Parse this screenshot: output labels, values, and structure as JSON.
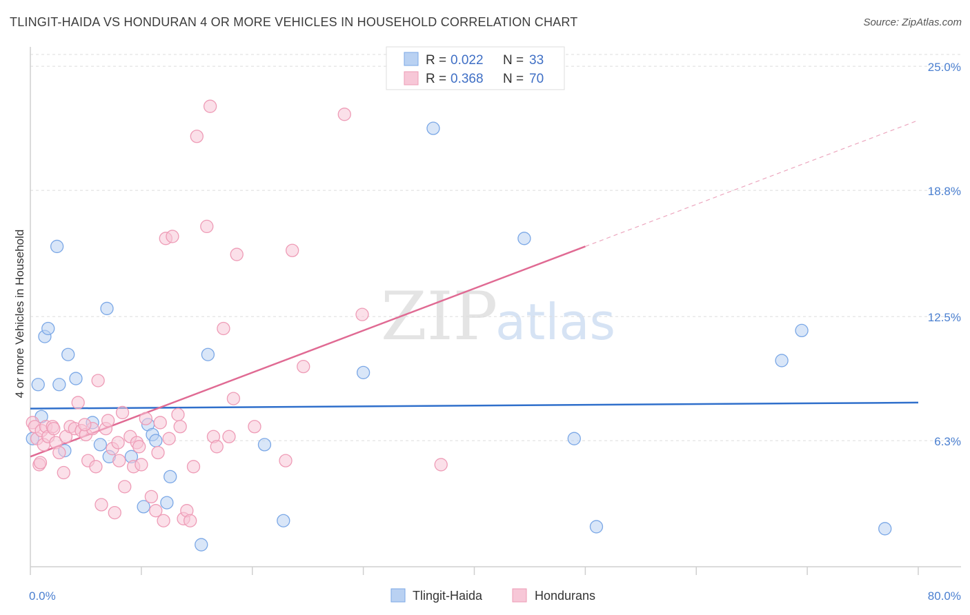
{
  "title": "TLINGIT-HAIDA VS HONDURAN 4 OR MORE VEHICLES IN HOUSEHOLD CORRELATION CHART",
  "source": "Source: ZipAtlas.com",
  "watermark": {
    "zip": "ZIP",
    "atlas": "atlas"
  },
  "legend": {
    "rows": [
      {
        "r_label": "R =",
        "r_value": "0.022",
        "n_label": "N =",
        "n_value": "33"
      },
      {
        "r_label": "R =",
        "r_value": "0.368",
        "n_label": "N =",
        "n_value": "70"
      }
    ]
  },
  "bottom_legend": [
    "Tlingit-Haida",
    "Hondurans"
  ],
  "chart_data": {
    "type": "scatter",
    "title": "TLINGIT-HAIDA VS HONDURAN 4 OR MORE VEHICLES IN HOUSEHOLD CORRELATION CHART",
    "xlabel": "",
    "ylabel": "4 or more Vehicles in Household",
    "xlim": [
      0,
      80
    ],
    "ylim": [
      0,
      25.9
    ],
    "x_tick_labels": [
      "0.0%",
      "80.0%"
    ],
    "y_ticks": [
      6.3,
      12.5,
      18.8,
      25.0
    ],
    "y_tick_labels": [
      "6.3%",
      "12.5%",
      "18.8%",
      "25.0%"
    ],
    "grid": true,
    "legend_position": "top-center",
    "series": [
      {
        "name": "Tlingit-Haida",
        "color": "#7aa7e6",
        "fill": "#b9d1f2",
        "r": 0.022,
        "n": 33,
        "trend": {
          "x": [
            0,
            80
          ],
          "y": [
            7.9,
            8.2
          ],
          "color": "#2f6fcb"
        },
        "points": [
          [
            0.2,
            6.4
          ],
          [
            0.7,
            9.1
          ],
          [
            1.0,
            7.5
          ],
          [
            1.3,
            11.5
          ],
          [
            1.6,
            11.9
          ],
          [
            2.4,
            16.0
          ],
          [
            2.6,
            9.1
          ],
          [
            3.1,
            5.8
          ],
          [
            3.4,
            10.6
          ],
          [
            4.1,
            9.4
          ],
          [
            5.6,
            7.2
          ],
          [
            6.3,
            6.1
          ],
          [
            6.9,
            12.9
          ],
          [
            7.1,
            5.5
          ],
          [
            9.1,
            5.5
          ],
          [
            10.2,
            3.0
          ],
          [
            10.6,
            7.1
          ],
          [
            11.0,
            6.6
          ],
          [
            11.3,
            6.3
          ],
          [
            12.3,
            3.2
          ],
          [
            12.6,
            4.5
          ],
          [
            15.4,
            1.1
          ],
          [
            16.0,
            10.6
          ],
          [
            21.1,
            6.1
          ],
          [
            22.8,
            2.3
          ],
          [
            30.0,
            9.7
          ],
          [
            36.3,
            21.9
          ],
          [
            44.5,
            16.4
          ],
          [
            49.0,
            6.4
          ],
          [
            51.0,
            2.0
          ],
          [
            67.7,
            10.3
          ],
          [
            69.5,
            11.8
          ],
          [
            77.0,
            1.9
          ]
        ]
      },
      {
        "name": "Hondurans",
        "color": "#ee9bb6",
        "fill": "#f7c7d7",
        "r": 0.368,
        "n": 70,
        "trend": {
          "x": [
            0,
            50
          ],
          "y": [
            5.5,
            16.0
          ],
          "dashed_to": [
            80,
            22.3
          ],
          "color": "#e06a93"
        },
        "points": [
          [
            0.2,
            7.2
          ],
          [
            0.4,
            7.0
          ],
          [
            0.6,
            6.4
          ],
          [
            0.8,
            5.1
          ],
          [
            1.0,
            6.8
          ],
          [
            1.2,
            6.1
          ],
          [
            1.4,
            7.0
          ],
          [
            1.6,
            6.5
          ],
          [
            2.0,
            7.0
          ],
          [
            2.3,
            6.2
          ],
          [
            2.6,
            5.7
          ],
          [
            3.0,
            4.7
          ],
          [
            3.2,
            6.5
          ],
          [
            3.6,
            7.0
          ],
          [
            4.0,
            6.9
          ],
          [
            4.3,
            8.2
          ],
          [
            4.6,
            6.8
          ],
          [
            5.0,
            6.6
          ],
          [
            5.2,
            5.3
          ],
          [
            5.6,
            6.9
          ],
          [
            5.9,
            5.0
          ],
          [
            6.1,
            9.3
          ],
          [
            6.4,
            3.1
          ],
          [
            6.8,
            6.9
          ],
          [
            7.0,
            7.3
          ],
          [
            7.4,
            5.9
          ],
          [
            7.6,
            2.7
          ],
          [
            8.0,
            5.3
          ],
          [
            8.3,
            7.7
          ],
          [
            8.5,
            4.0
          ],
          [
            9.0,
            6.5
          ],
          [
            9.3,
            5.0
          ],
          [
            9.6,
            6.2
          ],
          [
            10.0,
            5.1
          ],
          [
            10.4,
            7.4
          ],
          [
            10.9,
            3.5
          ],
          [
            11.3,
            2.8
          ],
          [
            11.7,
            7.2
          ],
          [
            12.0,
            2.3
          ],
          [
            12.2,
            16.4
          ],
          [
            12.5,
            6.4
          ],
          [
            12.8,
            16.5
          ],
          [
            13.3,
            7.6
          ],
          [
            13.5,
            7.0
          ],
          [
            13.8,
            2.4
          ],
          [
            14.1,
            2.8
          ],
          [
            14.4,
            2.3
          ],
          [
            14.7,
            5.0
          ],
          [
            15.0,
            21.5
          ],
          [
            15.9,
            17.0
          ],
          [
            16.2,
            23.0
          ],
          [
            16.5,
            6.5
          ],
          [
            16.8,
            6.0
          ],
          [
            17.4,
            11.9
          ],
          [
            17.9,
            6.5
          ],
          [
            18.3,
            8.4
          ],
          [
            18.6,
            15.6
          ],
          [
            20.2,
            7.0
          ],
          [
            23.0,
            5.3
          ],
          [
            23.6,
            15.8
          ],
          [
            24.6,
            10.0
          ],
          [
            28.3,
            22.6
          ],
          [
            29.9,
            12.6
          ],
          [
            37.0,
            5.1
          ],
          [
            0.9,
            5.2
          ],
          [
            2.1,
            6.9
          ],
          [
            4.9,
            7.1
          ],
          [
            7.9,
            6.2
          ],
          [
            9.8,
            6.0
          ],
          [
            11.5,
            5.7
          ]
        ]
      }
    ]
  }
}
